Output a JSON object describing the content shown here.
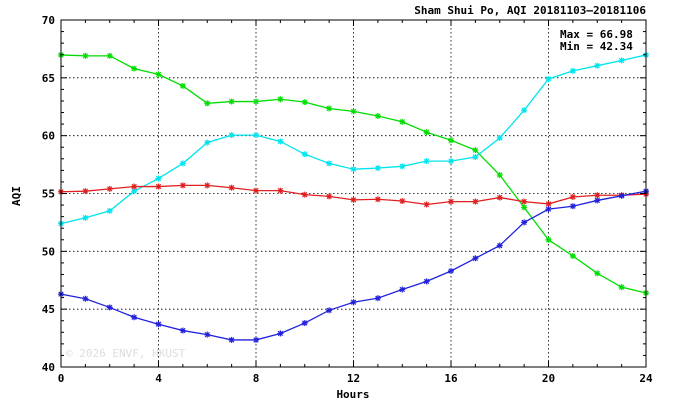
{
  "chart_data": {
    "type": "line",
    "title": "Sham Shui Po, AQI 20181103—20181106",
    "xlabel": "Hours",
    "ylabel": "AQI",
    "xlim": [
      0,
      24
    ],
    "ylim": [
      40,
      70
    ],
    "xticks": [
      0,
      4,
      8,
      12,
      16,
      20,
      24
    ],
    "yticks": [
      40,
      45,
      50,
      55,
      60,
      65,
      70
    ],
    "grid": true,
    "stats": {
      "max": "Max = 66.98",
      "min": "Min = 42.34"
    },
    "watermark": "© 2026  ENVF, HKUST",
    "x": [
      0,
      1,
      2,
      3,
      4,
      5,
      6,
      7,
      8,
      9,
      10,
      11,
      12,
      13,
      14,
      15,
      16,
      17,
      18,
      19,
      20,
      21,
      22,
      23,
      24
    ],
    "series": [
      {
        "color": "#00dd00",
        "values": [
          66.98,
          66.9,
          66.9,
          65.8,
          65.3,
          64.3,
          62.8,
          62.95,
          62.95,
          63.15,
          62.9,
          62.35,
          62.1,
          61.7,
          61.2,
          60.3,
          59.6,
          58.75,
          56.6,
          53.8,
          51.0,
          49.6,
          48.1,
          46.9,
          46.4
        ]
      },
      {
        "color": "#00e5ee",
        "values": [
          52.4,
          52.9,
          53.5,
          55.2,
          56.3,
          57.6,
          59.4,
          60.05,
          60.05,
          59.5,
          58.4,
          57.6,
          57.1,
          57.2,
          57.35,
          57.8,
          57.8,
          58.15,
          59.8,
          62.2,
          64.9,
          65.6,
          66.05,
          66.5,
          66.98
        ]
      },
      {
        "color": "#e02020",
        "values": [
          55.15,
          55.2,
          55.4,
          55.6,
          55.6,
          55.7,
          55.7,
          55.5,
          55.25,
          55.25,
          54.9,
          54.75,
          54.45,
          54.5,
          54.35,
          54.05,
          54.3,
          54.3,
          54.65,
          54.3,
          54.1,
          54.7,
          54.85,
          54.85,
          54.95
        ]
      },
      {
        "color": "#2222dd",
        "values": [
          46.3,
          45.9,
          45.15,
          44.3,
          43.7,
          43.15,
          42.8,
          42.34,
          42.34,
          42.9,
          43.8,
          44.9,
          45.6,
          45.95,
          46.7,
          47.4,
          48.3,
          49.4,
          50.5,
          52.5,
          53.65,
          53.9,
          54.4,
          54.8,
          55.2
        ]
      }
    ]
  }
}
